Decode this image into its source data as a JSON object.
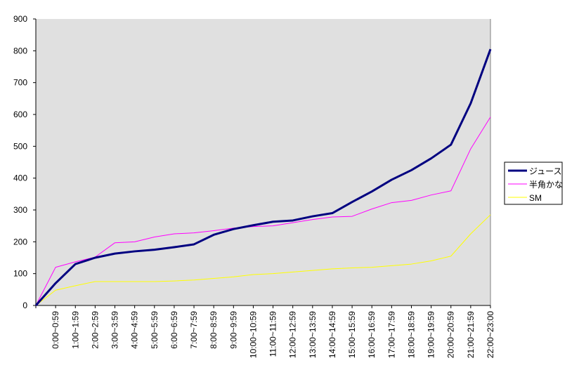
{
  "chart_data": {
    "type": "line",
    "title": "",
    "xlabel": "",
    "ylabel": "",
    "ylim": [
      0,
      900
    ],
    "yticks": [
      0,
      100,
      200,
      300,
      400,
      500,
      600,
      700,
      800,
      900
    ],
    "grid": false,
    "legend_position": "right",
    "plot_background": "#e0e0e0",
    "categories": [
      "",
      "0:00~0:59",
      "1:00~1:59",
      "2:00~2:59",
      "3:00~3:59",
      "4:00~4:59",
      "5:00~5:59",
      "6:00~6:59",
      "7:00~7:59",
      "8:00~8:59",
      "9:00~9:59",
      "10:00~10:59",
      "11:00~11:59",
      "12:00~12:59",
      "13:00~13:59",
      "14:00~14:59",
      "15:00~15:59",
      "16:00~16:59",
      "17:00~17:59",
      "18:00~18:59",
      "19:00~19:59",
      "20:00~20:59",
      "21:00~21:59",
      "22:00~23:00"
    ],
    "series": [
      {
        "name": "ジュース",
        "color": "#000080",
        "values": [
          0,
          70,
          130,
          150,
          163,
          170,
          175,
          183,
          192,
          222,
          240,
          252,
          263,
          267,
          280,
          290,
          325,
          358,
          395,
          425,
          462,
          505,
          635,
          805
        ]
      },
      {
        "name": "半角かな",
        "color": "#ff00ff",
        "values": [
          0,
          120,
          137,
          152,
          197,
          200,
          215,
          225,
          228,
          235,
          243,
          248,
          250,
          260,
          270,
          278,
          280,
          303,
          323,
          330,
          347,
          360,
          492,
          592
        ]
      },
      {
        "name": "SM",
        "color": "#ffff00",
        "values": [
          0,
          48,
          62,
          75,
          75,
          75,
          75,
          77,
          80,
          85,
          90,
          97,
          100,
          105,
          110,
          115,
          118,
          120,
          125,
          130,
          140,
          155,
          225,
          285
        ]
      }
    ]
  }
}
